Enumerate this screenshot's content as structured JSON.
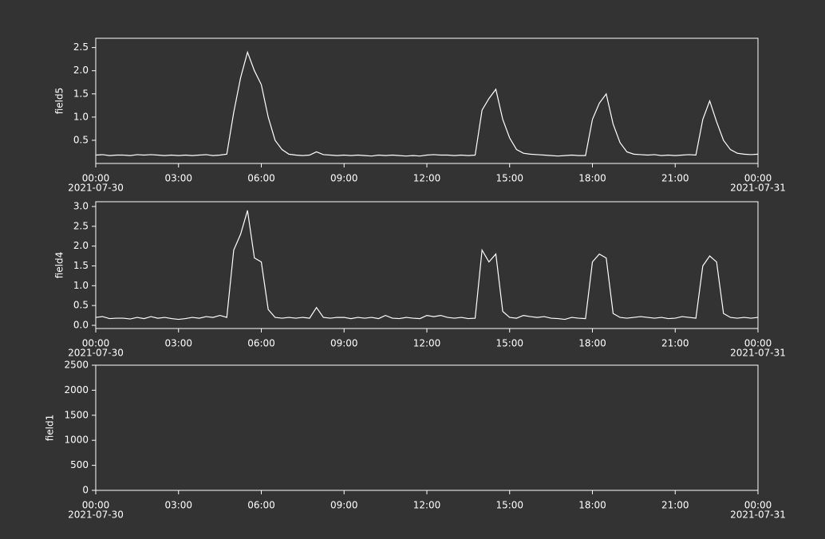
{
  "chart_data": [
    {
      "type": "line",
      "ylabel": "field5",
      "x": [
        0,
        0.25,
        0.5,
        0.75,
        1,
        1.25,
        1.5,
        1.75,
        2,
        2.25,
        2.5,
        2.75,
        3,
        3.25,
        3.5,
        3.75,
        4,
        4.25,
        4.5,
        4.75,
        5,
        5.25,
        5.5,
        5.75,
        6,
        6.25,
        6.5,
        6.75,
        7,
        7.25,
        7.5,
        7.75,
        8,
        8.25,
        8.5,
        8.75,
        9,
        9.25,
        9.5,
        9.75,
        10,
        10.25,
        10.5,
        10.75,
        11,
        11.25,
        11.5,
        11.75,
        12,
        12.25,
        12.5,
        12.75,
        13,
        13.25,
        13.5,
        13.75,
        14,
        14.25,
        14.5,
        14.75,
        15,
        15.25,
        15.5,
        15.75,
        16,
        16.25,
        16.5,
        16.75,
        17,
        17.25,
        17.5,
        17.75,
        18,
        18.25,
        18.5,
        18.75,
        19,
        19.25,
        19.5,
        19.75,
        20,
        20.25,
        20.5,
        20.75,
        21,
        21.25,
        21.5,
        21.75,
        22,
        22.25,
        22.5,
        22.75,
        23,
        23.25,
        23.5,
        23.75,
        24
      ],
      "series": [
        {
          "name": "field5",
          "color": "#ffffff",
          "values": [
            0.18,
            0.19,
            0.17,
            0.18,
            0.18,
            0.17,
            0.19,
            0.18,
            0.19,
            0.18,
            0.17,
            0.18,
            0.17,
            0.18,
            0.17,
            0.18,
            0.19,
            0.17,
            0.18,
            0.2,
            1.1,
            1.85,
            2.4,
            2.0,
            1.7,
            1.0,
            0.5,
            0.3,
            0.2,
            0.18,
            0.17,
            0.18,
            0.25,
            0.19,
            0.18,
            0.17,
            0.18,
            0.17,
            0.18,
            0.17,
            0.16,
            0.18,
            0.17,
            0.18,
            0.17,
            0.16,
            0.17,
            0.16,
            0.18,
            0.19,
            0.18,
            0.18,
            0.17,
            0.18,
            0.17,
            0.18,
            1.15,
            1.4,
            1.6,
            0.95,
            0.55,
            0.3,
            0.22,
            0.2,
            0.19,
            0.18,
            0.17,
            0.16,
            0.17,
            0.18,
            0.17,
            0.17,
            0.95,
            1.3,
            1.5,
            0.85,
            0.45,
            0.25,
            0.2,
            0.19,
            0.18,
            0.19,
            0.17,
            0.18,
            0.17,
            0.18,
            0.19,
            0.18,
            0.95,
            1.35,
            0.9,
            0.5,
            0.3,
            0.22,
            0.2,
            0.19,
            0.2
          ]
        }
      ],
      "xlim": [
        0,
        24
      ],
      "xticks": [
        {
          "value": 0,
          "label": "00:00"
        },
        {
          "value": 3,
          "label": "03:00"
        },
        {
          "value": 6,
          "label": "06:00"
        },
        {
          "value": 9,
          "label": "09:00"
        },
        {
          "value": 12,
          "label": "12:00"
        },
        {
          "value": 15,
          "label": "15:00"
        },
        {
          "value": 18,
          "label": "18:00"
        },
        {
          "value": 21,
          "label": "21:00"
        },
        {
          "value": 24,
          "label": "00:00"
        }
      ],
      "x_date_labels": [
        {
          "value": 0,
          "label": "2021-07-30"
        },
        {
          "value": 24,
          "label": "2021-07-31"
        }
      ],
      "ylim": [
        0,
        2.7
      ],
      "yticks": [
        0.5,
        {
          "value": 1,
          "label": "1.0"
        },
        1.5,
        {
          "value": 2,
          "label": "2.0"
        },
        2.5
      ]
    },
    {
      "type": "line",
      "ylabel": "field4",
      "x": [
        0,
        0.25,
        0.5,
        0.75,
        1,
        1.25,
        1.5,
        1.75,
        2,
        2.25,
        2.5,
        2.75,
        3,
        3.25,
        3.5,
        3.75,
        4,
        4.25,
        4.5,
        4.75,
        5,
        5.25,
        5.5,
        5.75,
        6,
        6.25,
        6.5,
        6.75,
        7,
        7.25,
        7.5,
        7.75,
        8,
        8.25,
        8.5,
        8.75,
        9,
        9.25,
        9.5,
        9.75,
        10,
        10.25,
        10.5,
        10.75,
        11,
        11.25,
        11.5,
        11.75,
        12,
        12.25,
        12.5,
        12.75,
        13,
        13.25,
        13.5,
        13.75,
        14,
        14.25,
        14.5,
        14.75,
        15,
        15.25,
        15.5,
        15.75,
        16,
        16.25,
        16.5,
        16.75,
        17,
        17.25,
        17.5,
        17.75,
        18,
        18.25,
        18.5,
        18.75,
        19,
        19.25,
        19.5,
        19.75,
        20,
        20.25,
        20.5,
        20.75,
        21,
        21.25,
        21.5,
        21.75,
        22,
        22.25,
        22.5,
        22.75,
        23,
        23.25,
        23.5,
        23.75,
        24
      ],
      "series": [
        {
          "name": "field4",
          "color": "#ffffff",
          "values": [
            0.2,
            0.22,
            0.17,
            0.18,
            0.18,
            0.16,
            0.2,
            0.17,
            0.22,
            0.18,
            0.2,
            0.17,
            0.15,
            0.17,
            0.2,
            0.18,
            0.22,
            0.2,
            0.25,
            0.2,
            1.9,
            2.3,
            2.9,
            1.7,
            1.6,
            0.4,
            0.2,
            0.18,
            0.2,
            0.18,
            0.2,
            0.18,
            0.45,
            0.2,
            0.18,
            0.2,
            0.2,
            0.17,
            0.2,
            0.18,
            0.2,
            0.17,
            0.25,
            0.18,
            0.17,
            0.2,
            0.18,
            0.17,
            0.25,
            0.22,
            0.25,
            0.2,
            0.18,
            0.2,
            0.17,
            0.18,
            1.9,
            1.6,
            1.8,
            0.35,
            0.2,
            0.18,
            0.25,
            0.22,
            0.2,
            0.22,
            0.18,
            0.17,
            0.15,
            0.2,
            0.18,
            0.17,
            1.6,
            1.8,
            1.7,
            0.3,
            0.2,
            0.18,
            0.2,
            0.22,
            0.2,
            0.18,
            0.2,
            0.17,
            0.18,
            0.22,
            0.2,
            0.18,
            1.5,
            1.75,
            1.6,
            0.3,
            0.2,
            0.18,
            0.2,
            0.18,
            0.2
          ]
        }
      ],
      "xlim": [
        0,
        24
      ],
      "xticks": [
        {
          "value": 0,
          "label": "00:00"
        },
        {
          "value": 3,
          "label": "03:00"
        },
        {
          "value": 6,
          "label": "06:00"
        },
        {
          "value": 9,
          "label": "09:00"
        },
        {
          "value": 12,
          "label": "12:00"
        },
        {
          "value": 15,
          "label": "15:00"
        },
        {
          "value": 18,
          "label": "18:00"
        },
        {
          "value": 21,
          "label": "21:00"
        },
        {
          "value": 24,
          "label": "00:00"
        }
      ],
      "x_date_labels": [
        {
          "value": 0,
          "label": "2021-07-30"
        },
        {
          "value": 24,
          "label": "2021-07-31"
        }
      ],
      "ylim": [
        -0.08,
        3.12
      ],
      "yticks": [
        {
          "value": 0,
          "label": "0.0"
        },
        0.5,
        {
          "value": 1,
          "label": "1.0"
        },
        1.5,
        {
          "value": 2,
          "label": "2.0"
        },
        2.5,
        {
          "value": 3,
          "label": "3.0"
        }
      ]
    },
    {
      "type": "line",
      "ylabel": "field1",
      "xlim": [
        0,
        24
      ],
      "xticks": [
        {
          "value": 0,
          "label": "00:00"
        },
        {
          "value": 3,
          "label": "03:00"
        },
        {
          "value": 6,
          "label": "06:00"
        },
        {
          "value": 9,
          "label": "09:00"
        },
        {
          "value": 12,
          "label": "12:00"
        },
        {
          "value": 15,
          "label": "15:00"
        },
        {
          "value": 18,
          "label": "18:00"
        },
        {
          "value": 21,
          "label": "21:00"
        },
        {
          "value": 24,
          "label": "00:00"
        }
      ],
      "x_date_labels": [
        {
          "value": 0,
          "label": "2021-07-30"
        },
        {
          "value": 24,
          "label": "2021-07-31"
        }
      ],
      "ylim": [
        0,
        2500
      ],
      "yticks": [
        0,
        500,
        1000,
        1500,
        2000,
        2500
      ]
    }
  ]
}
